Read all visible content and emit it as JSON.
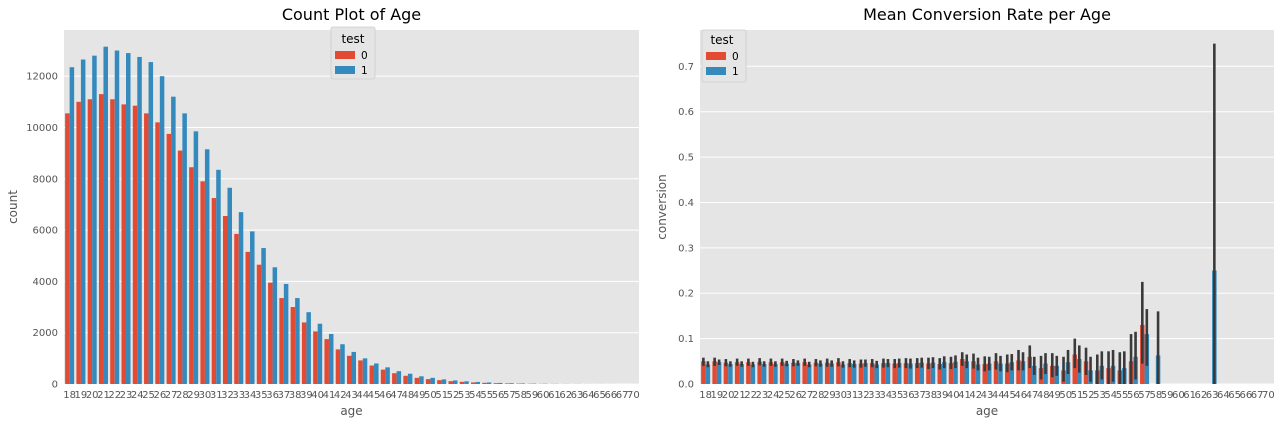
{
  "theme": {
    "panel_bg": "#e5e5e5",
    "grid_color": "#ffffff",
    "series_colors": [
      "#e24a33",
      "#348abd"
    ],
    "errorbar_color": "#3a3a3a"
  },
  "chart_data": [
    {
      "type": "bar",
      "title": "Count Plot of Age",
      "xlabel": "age",
      "ylabel": "count",
      "ylim": [
        0,
        13800
      ],
      "yticks": [
        0,
        2000,
        4000,
        6000,
        8000,
        10000,
        12000
      ],
      "grid": true,
      "legend": {
        "title": "test",
        "placement": "upper-center",
        "entries": [
          "0",
          "1"
        ]
      },
      "categories": [
        "18",
        "19",
        "20",
        "21",
        "22",
        "23",
        "24",
        "25",
        "26",
        "27",
        "28",
        "29",
        "30",
        "31",
        "32",
        "33",
        "34",
        "35",
        "36",
        "37",
        "38",
        "39",
        "40",
        "41",
        "42",
        "43",
        "44",
        "45",
        "46",
        "47",
        "48",
        "49",
        "50",
        "51",
        "52",
        "53",
        "54",
        "55",
        "56",
        "57",
        "58",
        "59",
        "60",
        "61",
        "62",
        "63",
        "64",
        "65",
        "66",
        "67",
        "70"
      ],
      "series": [
        {
          "name": "0",
          "values": [
            10550,
            11000,
            11100,
            11300,
            11100,
            10900,
            10850,
            10550,
            10200,
            9750,
            9100,
            8450,
            7900,
            7250,
            6550,
            5850,
            5150,
            4650,
            3950,
            3350,
            3000,
            2400,
            2050,
            1750,
            1350,
            1100,
            920,
            720,
            560,
            420,
            320,
            240,
            190,
            150,
            110,
            85,
            60,
            45,
            32,
            22,
            15,
            10,
            7,
            5,
            4,
            3,
            2,
            2,
            1,
            1,
            1
          ]
        },
        {
          "name": "1",
          "values": [
            12350,
            12650,
            12800,
            13150,
            13000,
            12900,
            12750,
            12550,
            12000,
            11200,
            10550,
            9850,
            9150,
            8350,
            7650,
            6700,
            5950,
            5300,
            4550,
            3900,
            3350,
            2800,
            2350,
            1950,
            1550,
            1250,
            1000,
            800,
            650,
            500,
            400,
            300,
            240,
            180,
            140,
            105,
            80,
            60,
            42,
            30,
            20,
            14,
            10,
            7,
            5,
            4,
            3,
            2,
            2,
            1,
            1
          ]
        }
      ]
    },
    {
      "type": "bar",
      "title": "Mean Conversion Rate per Age",
      "xlabel": "age",
      "ylabel": "conversion",
      "ylim": [
        0,
        0.78
      ],
      "yticks": [
        0.0,
        0.1,
        0.2,
        0.3,
        0.4,
        0.5,
        0.6,
        0.7
      ],
      "grid": true,
      "error_bars": true,
      "legend": {
        "title": "test",
        "placement": "upper-left",
        "entries": [
          "0",
          "1"
        ]
      },
      "categories": [
        "18",
        "19",
        "20",
        "21",
        "22",
        "23",
        "24",
        "25",
        "26",
        "27",
        "28",
        "29",
        "30",
        "31",
        "32",
        "33",
        "34",
        "35",
        "36",
        "37",
        "38",
        "39",
        "40",
        "41",
        "42",
        "43",
        "44",
        "45",
        "46",
        "47",
        "48",
        "49",
        "50",
        "51",
        "52",
        "53",
        "54",
        "55",
        "56",
        "57",
        "58",
        "59",
        "60",
        "61",
        "62",
        "63",
        "64",
        "65",
        "66",
        "67",
        "70"
      ],
      "series": [
        {
          "name": "0",
          "values": [
            0.05,
            0.05,
            0.047,
            0.048,
            0.048,
            0.049,
            0.048,
            0.048,
            0.047,
            0.048,
            0.047,
            0.047,
            0.048,
            0.046,
            0.045,
            0.046,
            0.046,
            0.045,
            0.046,
            0.046,
            0.045,
            0.044,
            0.046,
            0.055,
            0.05,
            0.044,
            0.05,
            0.045,
            0.052,
            0.06,
            0.035,
            0.04,
            0.03,
            0.065,
            0.05,
            0.03,
            0.035,
            0.03,
            0.05,
            0.13,
            null,
            null,
            null,
            null,
            null,
            null,
            null,
            null,
            null,
            null,
            null
          ],
          "ci_low": [
            0.04,
            0.04,
            0.039,
            0.04,
            0.04,
            0.041,
            0.04,
            0.04,
            0.039,
            0.04,
            0.039,
            0.038,
            0.039,
            0.037,
            0.036,
            0.037,
            0.036,
            0.035,
            0.035,
            0.035,
            0.033,
            0.032,
            0.033,
            0.04,
            0.034,
            0.028,
            0.032,
            0.026,
            0.03,
            0.035,
            0.01,
            0.015,
            0.005,
            0.035,
            0.02,
            0.0,
            0.0,
            0.0,
            0.0,
            0.045,
            null,
            null,
            null,
            null,
            null,
            null,
            null,
            null,
            null,
            null,
            null
          ],
          "ci_high": [
            0.058,
            0.058,
            0.055,
            0.056,
            0.056,
            0.057,
            0.056,
            0.056,
            0.055,
            0.056,
            0.055,
            0.056,
            0.057,
            0.055,
            0.054,
            0.055,
            0.056,
            0.055,
            0.057,
            0.057,
            0.058,
            0.057,
            0.06,
            0.07,
            0.067,
            0.061,
            0.068,
            0.065,
            0.075,
            0.085,
            0.062,
            0.068,
            0.06,
            0.1,
            0.08,
            0.065,
            0.072,
            0.07,
            0.11,
            0.225,
            null,
            null,
            null,
            null,
            null,
            null,
            null,
            null,
            null,
            null,
            null
          ]
        },
        {
          "name": "1",
          "values": [
            0.043,
            0.048,
            0.044,
            0.044,
            0.043,
            0.044,
            0.044,
            0.045,
            0.046,
            0.043,
            0.045,
            0.045,
            0.043,
            0.044,
            0.046,
            0.043,
            0.046,
            0.046,
            0.045,
            0.047,
            0.047,
            0.048,
            0.049,
            0.05,
            0.043,
            0.045,
            0.045,
            0.048,
            0.05,
            0.04,
            0.045,
            0.04,
            0.048,
            0.055,
            0.03,
            0.04,
            0.04,
            0.035,
            0.06,
            0.11,
            0.063,
            null,
            null,
            null,
            null,
            0.25,
            null,
            null,
            null,
            null,
            null
          ],
          "ci_low": [
            0.037,
            0.042,
            0.038,
            0.038,
            0.037,
            0.038,
            0.038,
            0.039,
            0.04,
            0.037,
            0.038,
            0.038,
            0.036,
            0.036,
            0.038,
            0.035,
            0.037,
            0.036,
            0.034,
            0.036,
            0.035,
            0.035,
            0.035,
            0.035,
            0.03,
            0.03,
            0.028,
            0.03,
            0.03,
            0.02,
            0.022,
            0.018,
            0.022,
            0.025,
            0.005,
            0.01,
            0.005,
            0.0,
            0.01,
            0.04,
            0.0,
            null,
            null,
            null,
            null,
            0.0,
            null,
            null,
            null,
            null,
            null
          ],
          "ci_high": [
            0.05,
            0.054,
            0.05,
            0.05,
            0.049,
            0.05,
            0.05,
            0.051,
            0.052,
            0.049,
            0.052,
            0.052,
            0.05,
            0.052,
            0.054,
            0.051,
            0.055,
            0.056,
            0.056,
            0.058,
            0.059,
            0.061,
            0.063,
            0.065,
            0.058,
            0.06,
            0.062,
            0.066,
            0.07,
            0.06,
            0.068,
            0.062,
            0.075,
            0.085,
            0.06,
            0.072,
            0.075,
            0.072,
            0.115,
            0.165,
            0.16,
            null,
            null,
            null,
            null,
            0.75,
            null,
            null,
            null,
            null,
            null
          ]
        }
      ]
    }
  ]
}
